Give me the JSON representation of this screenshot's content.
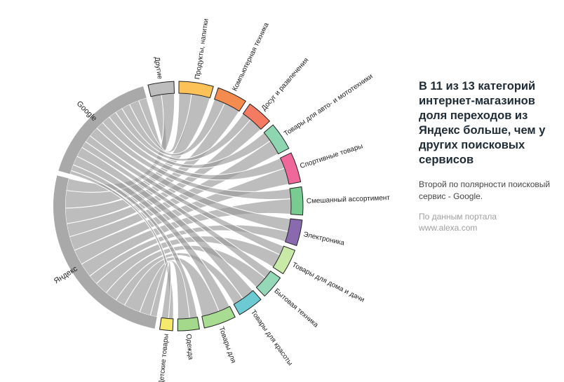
{
  "panel": {
    "title": "В 11 из 13 категорий интернет-магазинов доля переходов из Яндекс больше, чем у других поисковых сервисов",
    "subtitle": "Второй по полярности поисковый сервис - Google.",
    "source_line1": "По данным портала",
    "source_line2": "www.alexa.com"
  },
  "chart_data": {
    "type": "chord",
    "title": "В 11 из 13 категорий интернет-магазинов доля переходов из Яндекс больше, чем у других поисковых сервисов",
    "sources": [
      {
        "name": "Яндекс",
        "color": "#a9a9a9"
      },
      {
        "name": "Google",
        "color": "#a9a9a9"
      }
    ],
    "categories": [
      {
        "name": "Другие",
        "value": 12,
        "yandex_share": 0.55,
        "color": "#bdbdbd"
      },
      {
        "name": "Продукты, напитки",
        "value": 16,
        "yandex_share": 0.6,
        "color": "#fcc157"
      },
      {
        "name": "Компьютерная техника",
        "value": 14,
        "yandex_share": 0.6,
        "color": "#f58c4f"
      },
      {
        "name": "Досуг и развлечения",
        "value": 12,
        "yandex_share": 0.6,
        "color": "#f47a62"
      },
      {
        "name": "Товары для авто- и мототехники",
        "value": 13,
        "yandex_share": 0.6,
        "color": "#8ed6b2"
      },
      {
        "name": "Спортивные товары",
        "value": 14,
        "yandex_share": 0.6,
        "color": "#f0689a"
      },
      {
        "name": "Смешанный ассортимент",
        "value": 13,
        "yandex_share": 0.6,
        "color": "#78cc92"
      },
      {
        "name": "Электроника",
        "value": 12,
        "yandex_share": 0.45,
        "color": "#8a6aaf"
      },
      {
        "name": "Товары для дома и дачи",
        "value": 12,
        "yandex_share": 0.6,
        "color": "#c8eaa6"
      },
      {
        "name": "Бытовая техника",
        "value": 11,
        "yandex_share": 0.6,
        "color": "#94d8b8"
      },
      {
        "name": "Товары для красоты",
        "value": 12,
        "yandex_share": 0.45,
        "color": "#6ccbd2"
      },
      {
        "name": "Товары для",
        "value": 15,
        "yandex_share": 0.6,
        "color": "#a8dc92"
      },
      {
        "name": "Одежда",
        "value": 10,
        "yandex_share": 0.6,
        "color": "#a4d98c"
      },
      {
        "name": "Детские товары",
        "value": 6,
        "yandex_share": 0.6,
        "color": "#f6ea6c"
      }
    ],
    "source_values": {
      "Яндекс": 93,
      "Google": 57
    },
    "chord_color": "#9a9a9a"
  }
}
